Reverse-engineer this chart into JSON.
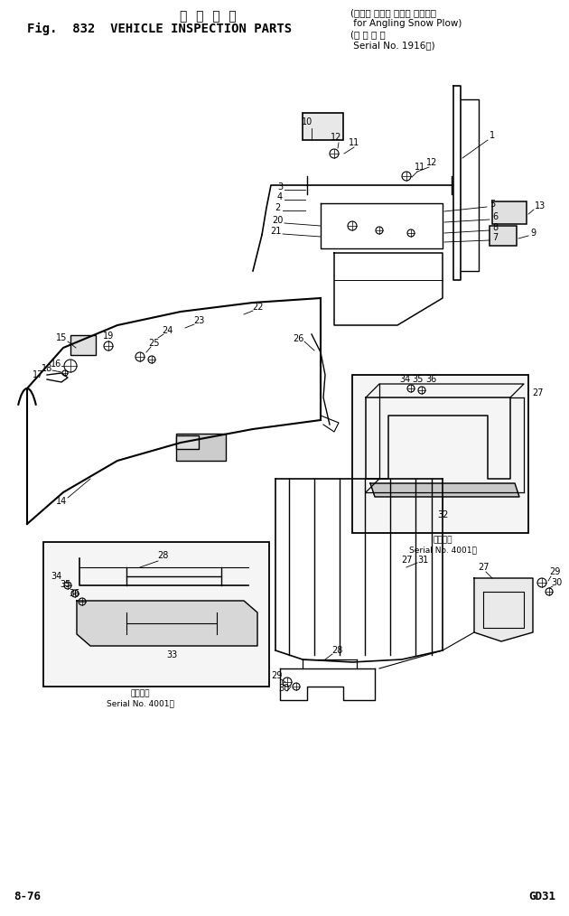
{
  "title_japanese": "車  検  部  品",
  "title_english": "Fig.  832  VEHICLE INSPECTION PARTS",
  "subtitle_line1": "(アング リング スノウ プラウ用",
  "subtitle_line2": " for Angling Snow Plow)",
  "subtitle_line3": "(適 用 号 機",
  "subtitle_line4": " Serial No. 1916～)",
  "page_left": "8-76",
  "page_right": "GD31",
  "serial_note1": "適用号機",
  "serial_note2": "Serial No. 4001～",
  "background_color": "#ffffff",
  "line_color": "#000000"
}
